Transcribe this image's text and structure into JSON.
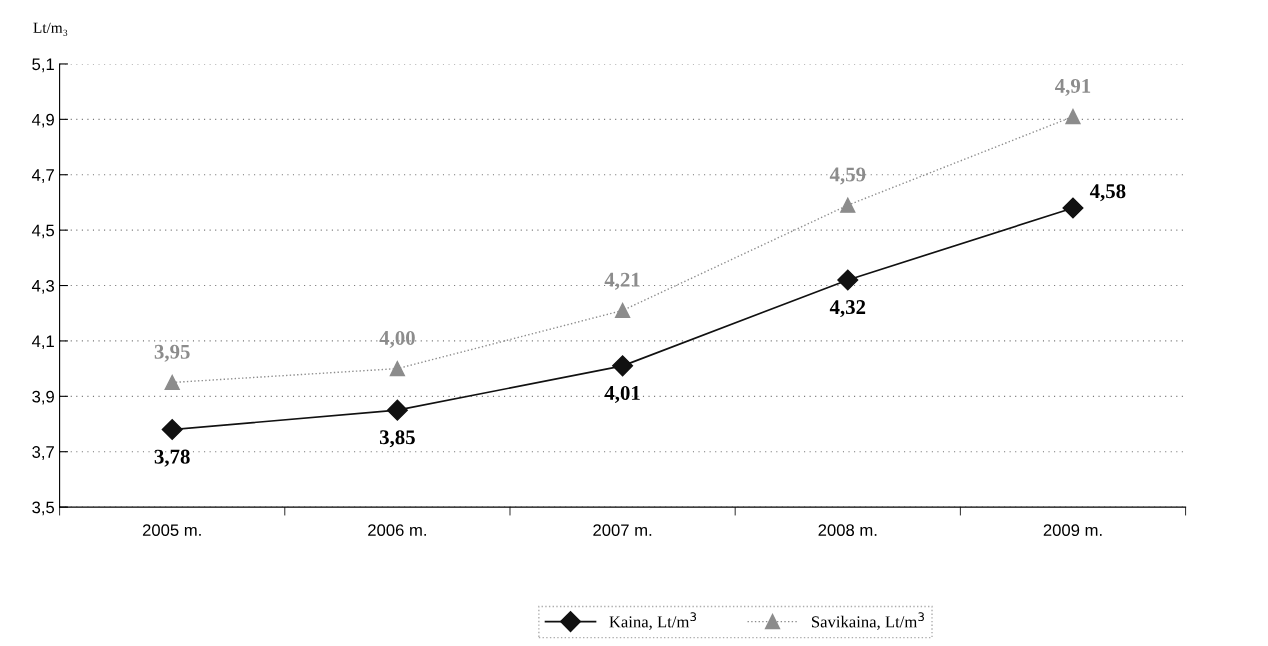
{
  "chart_data": {
    "type": "line",
    "ylabel": "Lt/m₃",
    "categories": [
      "2005 m.",
      "2006 m.",
      "2007 m.",
      "2008 m.",
      "2009 m."
    ],
    "series": [
      {
        "name": "Kaina, Lt/m$^{3}$",
        "color": "#111111",
        "marker": "diamond",
        "line_style": "solid",
        "values": [
          3.78,
          3.85,
          4.01,
          4.32,
          4.58
        ],
        "value_labels": [
          "3,78",
          "3,85",
          "4,01",
          "4,32",
          "4,58"
        ]
      },
      {
        "name": "Savikaina, Lt/m$^{3}$",
        "color": "#8c8c8c",
        "marker": "triangle",
        "line_style": "dotted",
        "values": [
          3.95,
          4.0,
          4.21,
          4.59,
          4.91
        ],
        "value_labels": [
          "3,95",
          "4,00",
          "4,21",
          "4,59",
          "4,91"
        ]
      }
    ],
    "ylim": [
      3.5,
      5.1
    ],
    "yticks": [
      {
        "value": 3.5,
        "label": "3,5"
      },
      {
        "value": 3.7,
        "label": "3,7"
      },
      {
        "value": 3.9,
        "label": "3,9"
      },
      {
        "value": 4.1,
        "label": "4,1"
      },
      {
        "value": 4.3,
        "label": "4,3"
      },
      {
        "value": 4.5,
        "label": "4,5"
      },
      {
        "value": 4.7,
        "label": "4,7"
      },
      {
        "value": 4.9,
        "label": "4,9"
      },
      {
        "value": 5.1,
        "label": "5,1"
      }
    ],
    "grid": "y",
    "legend": "bottom"
  }
}
